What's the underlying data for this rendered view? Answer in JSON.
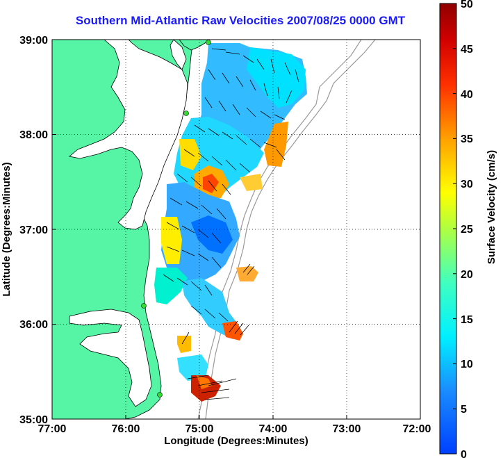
{
  "title": "Southern Mid-Atlantic Raw Velocities 2007/08/25 0000 GMT",
  "x_axis": {
    "label": "Longitude (Degrees:Minutes)",
    "ticks": [
      "77:00",
      "76:00",
      "75:00",
      "74:00",
      "73:00",
      "72:00"
    ]
  },
  "y_axis": {
    "label": "Latitude (Degrees:Minutes)",
    "ticks": [
      "39:00",
      "38:00",
      "37:00",
      "36:00",
      "35:00"
    ]
  },
  "colorbar": {
    "label": "Surface Velocity (cm/s)",
    "ticks": [
      "50",
      "45",
      "40",
      "35",
      "30",
      "25",
      "20",
      "15",
      "10",
      "5",
      "0"
    ],
    "min": 0,
    "max": 50
  },
  "colors": {
    "land": "#55f5a5",
    "water": "#ffffff",
    "title": "#1a1aff",
    "station": "#33dd33"
  },
  "chart_data": {
    "type": "heatmap",
    "title": "Southern Mid-Atlantic Raw Velocities 2007/08/25 0000 GMT",
    "xlabel": "Longitude (Degrees:Minutes)",
    "ylabel": "Latitude (Degrees:Minutes)",
    "xlim": [
      -77,
      -72
    ],
    "ylim": [
      35,
      39
    ],
    "grid": true,
    "colorbar_range_cm_s": [
      0,
      50
    ],
    "stations": [
      [
        -74.9,
        38.96
      ],
      [
        -75.15,
        38.22
      ],
      [
        -75.78,
        36.2
      ],
      [
        -75.5,
        35.27
      ]
    ]
  }
}
